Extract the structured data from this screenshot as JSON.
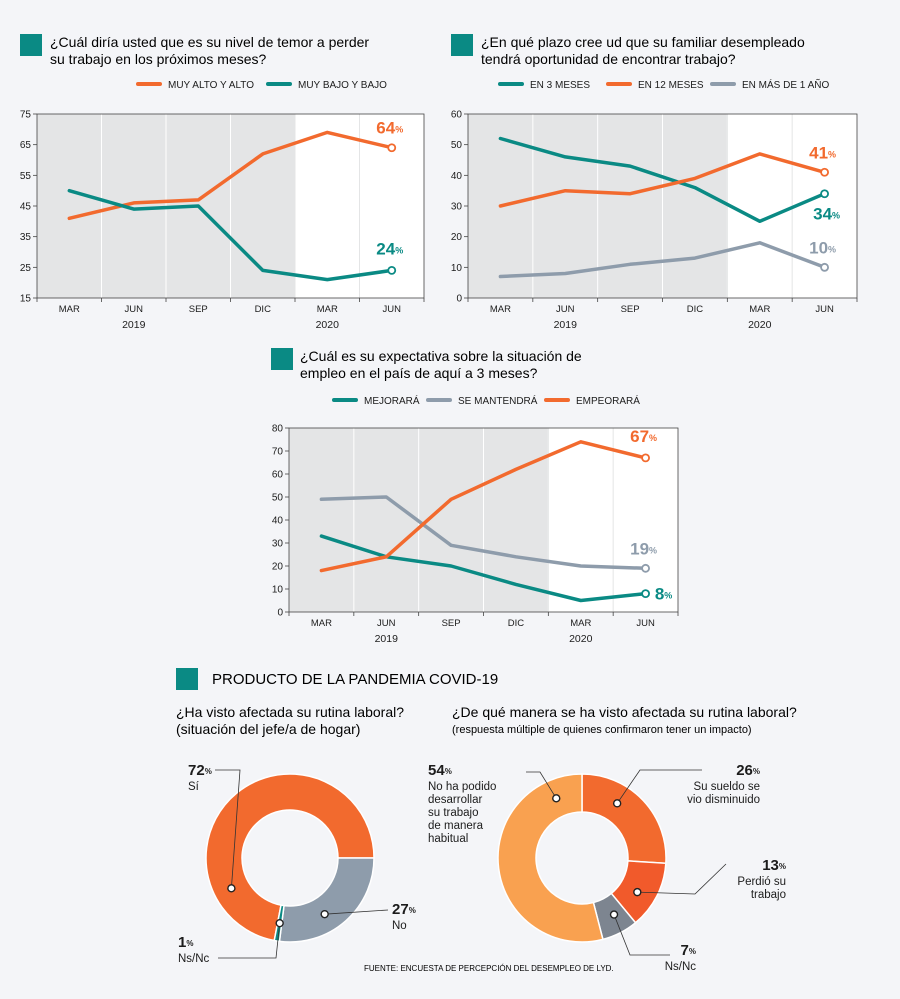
{
  "colors": {
    "orange": "#f26a2e",
    "teal": "#0a8a84",
    "gray": "#8e9cab",
    "light_orange": "#f9a150",
    "red_orange": "#f15a2b",
    "dark_gray": "#7d8590",
    "shade": "#e4e5e6"
  },
  "section_title": "PRODUCTO DE LA PANDEMIA COVID-19",
  "source": "FUENTE: ENCUESTA DE PERCEPCIÓN DEL DESEMPLEO DE LYD.",
  "chart_data": [
    {
      "type": "line",
      "title": [
        "¿Cuál diría usted que es su nivel de temor a perder",
        "su trabajo en los próximos meses?"
      ],
      "categories": [
        "MAR",
        "JUN",
        "SEP",
        "DIC",
        "MAR",
        "JUN"
      ],
      "years": [
        {
          "label": "2019",
          "under": 1.5
        },
        {
          "label": "2020",
          "under": 4.5
        }
      ],
      "ylim": [
        15,
        75
      ],
      "yticks": [
        15,
        25,
        35,
        45,
        55,
        65,
        75
      ],
      "shaded_categories": [
        0,
        1,
        2,
        3
      ],
      "series": [
        {
          "name": "MUY ALTO Y ALTO",
          "color": "#f26a2e",
          "values": [
            41,
            46,
            47,
            62,
            69,
            64
          ],
          "end_label": "64"
        },
        {
          "name": "MUY BAJO Y BAJO",
          "color": "#0a8a84",
          "values": [
            50,
            44,
            45,
            24,
            21,
            24
          ],
          "end_label": "24"
        }
      ]
    },
    {
      "type": "line",
      "title": [
        "¿En qué plazo cree ud que su familiar desempleado",
        "tendrá oportunidad de encontrar trabajo?"
      ],
      "categories": [
        "MAR",
        "JUN",
        "SEP",
        "DIC",
        "MAR",
        "JUN"
      ],
      "years": [
        {
          "label": "2019",
          "under": 1.5
        },
        {
          "label": "2020",
          "under": 4.5
        }
      ],
      "ylim": [
        0,
        60
      ],
      "yticks": [
        0,
        10,
        20,
        30,
        40,
        50,
        60
      ],
      "shaded_categories": [
        0,
        1,
        2,
        3
      ],
      "series": [
        {
          "name": "EN 3 MESES",
          "color": "#0a8a84",
          "values": [
            52,
            46,
            43,
            36,
            25,
            34
          ],
          "end_label": "34"
        },
        {
          "name": "EN 12 MESES",
          "color": "#f26a2e",
          "values": [
            30,
            35,
            34,
            39,
            47,
            41
          ],
          "end_label": "41"
        },
        {
          "name": "EN MÁS DE 1 AÑO",
          "color": "#8e9cab",
          "values": [
            7,
            8,
            11,
            13,
            18,
            10
          ],
          "end_label": "10"
        }
      ]
    },
    {
      "type": "line",
      "title": [
        "¿Cuál es su expectativa sobre la situación de",
        "empleo en el país de aquí a 3 meses?"
      ],
      "categories": [
        "MAR",
        "JUN",
        "SEP",
        "DIC",
        "MAR",
        "JUN"
      ],
      "years": [
        {
          "label": "2019",
          "under": 1.5
        },
        {
          "label": "2020",
          "under": 4.5
        }
      ],
      "ylim": [
        0,
        80
      ],
      "yticks": [
        0,
        10,
        20,
        30,
        40,
        50,
        60,
        70,
        80
      ],
      "shaded_categories": [
        0,
        1,
        2,
        3
      ],
      "series": [
        {
          "name": "MEJORARÁ",
          "color": "#0a8a84",
          "values": [
            33,
            24,
            20,
            12,
            5,
            8
          ],
          "end_label": "8"
        },
        {
          "name": "SE MANTENDRÁ",
          "color": "#8e9cab",
          "values": [
            49,
            50,
            29,
            24,
            20,
            19
          ],
          "end_label": "19"
        },
        {
          "name": "EMPEORARÁ",
          "color": "#f26a2e",
          "values": [
            18,
            24,
            49,
            62,
            74,
            67
          ],
          "end_label": "67"
        }
      ]
    },
    {
      "type": "pie",
      "title": [
        "¿Ha visto afectada su rutina laboral?",
        "(situación del jefe/a de hogar)"
      ],
      "slices": [
        {
          "label": "Sí",
          "value": 72,
          "color": "#f26a2e"
        },
        {
          "label": "No",
          "value": 27,
          "color": "#8e9cab"
        },
        {
          "label": "Ns/Nc",
          "value": 1,
          "color": "#0a8a84"
        }
      ]
    },
    {
      "type": "pie",
      "title": [
        "¿De qué manera se ha visto afectada su rutina laboral?",
        "(respuesta múltiple de quienes confirmaron tener un impacto)"
      ],
      "slices": [
        {
          "label": "Su sueldo se vio disminuido",
          "value": 26,
          "color": "#f26a2e"
        },
        {
          "label": "Perdió su trabajo",
          "value": 13,
          "color": "#f15a2b"
        },
        {
          "label": "Ns/Nc",
          "value": 7,
          "color": "#7d8590"
        },
        {
          "label": "No ha podido desarrollar su trabajo de manera habitual",
          "value": 54,
          "color": "#f9a150"
        }
      ]
    }
  ]
}
